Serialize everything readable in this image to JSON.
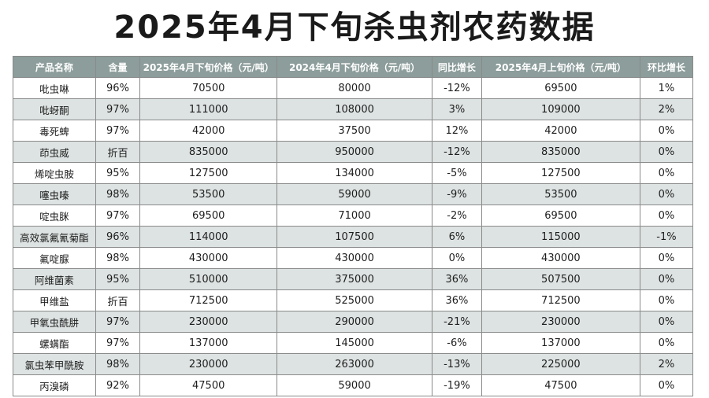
{
  "title": "2025年4月下旬杀虫剂农药数据",
  "headers": [
    "产品名称",
    "含量",
    "2025年4月下旬价格（元/吨）",
    "2024年4月下旬价格（元/吨）",
    "同比增长",
    "2025年4月上旬价格（元/吨）",
    "环比增长"
  ],
  "rows": [
    [
      "吡虫啉",
      "96%",
      "70500",
      "80000",
      "-12%",
      "69500",
      "1%"
    ],
    [
      "吡蚜酮",
      "97%",
      "111000",
      "108000",
      "3%",
      "109000",
      "2%"
    ],
    [
      "毒死蜱",
      "97%",
      "42000",
      "37500",
      "12%",
      "42000",
      "0%"
    ],
    [
      "茚虫威",
      "折百",
      "835000",
      "950000",
      "-12%",
      "835000",
      "0%"
    ],
    [
      "烯啶虫胺",
      "95%",
      "127500",
      "134000",
      "-5%",
      "127500",
      "0%"
    ],
    [
      "噻虫嗪",
      "98%",
      "53500",
      "59000",
      "-9%",
      "53500",
      "0%"
    ],
    [
      "啶虫脒",
      "97%",
      "69500",
      "71000",
      "-2%",
      "69500",
      "0%"
    ],
    [
      "高效氯氟氰菊酯",
      "96%",
      "114000",
      "107500",
      "6%",
      "115000",
      "-1%"
    ],
    [
      "氟啶脲",
      "98%",
      "430000",
      "430000",
      "0%",
      "430000",
      "0%"
    ],
    [
      "阿维菌素",
      "95%",
      "510000",
      "375000",
      "36%",
      "507500",
      "0%"
    ],
    [
      "甲维盐",
      "折百",
      "712500",
      "525000",
      "36%",
      "712500",
      "0%"
    ],
    [
      "甲氧虫酰肼",
      "97%",
      "230000",
      "290000",
      "-21%",
      "230000",
      "0%"
    ],
    [
      "螺螨酯",
      "97%",
      "137000",
      "145000",
      "-6%",
      "137000",
      "0%"
    ],
    [
      "氯虫苯甲酰胺",
      "98%",
      "230000",
      "263000",
      "-13%",
      "225000",
      "2%"
    ],
    [
      "丙溴磷",
      "92%",
      "47500",
      "59000",
      "-19%",
      "47500",
      "0%"
    ]
  ]
}
